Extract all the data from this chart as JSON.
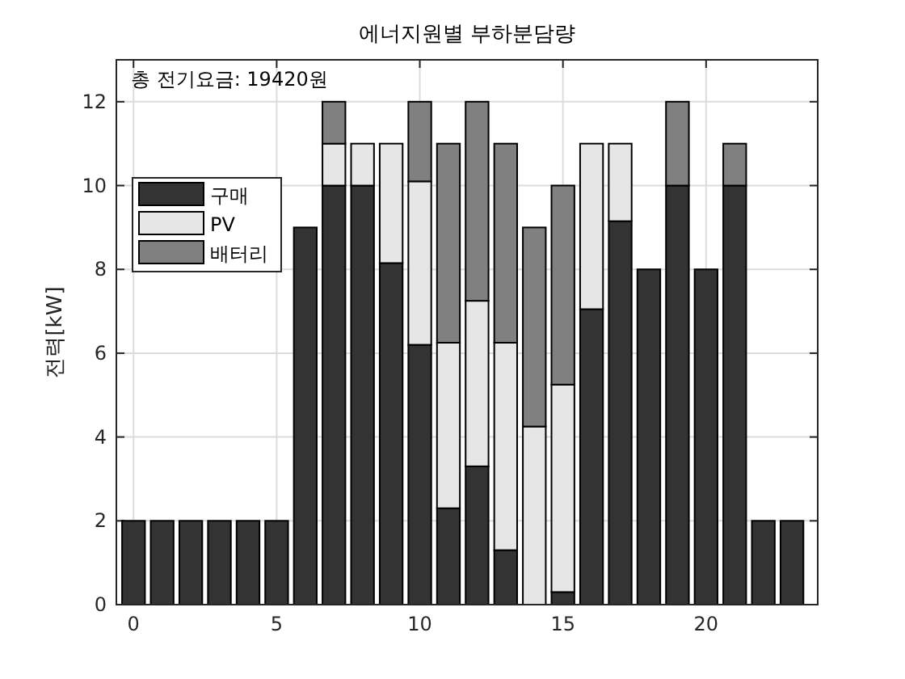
{
  "chart_data": {
    "type": "bar",
    "stacked": true,
    "title": "에너지원별 부하분담량",
    "ylabel": "전력[kW]",
    "annotations": [
      "총 전기요금: 19420원"
    ],
    "x": [
      0,
      1,
      2,
      3,
      4,
      5,
      6,
      7,
      8,
      9,
      10,
      11,
      12,
      13,
      14,
      15,
      16,
      17,
      18,
      19,
      20,
      21,
      22,
      23
    ],
    "series": [
      {
        "name": "구매",
        "color": "#333333",
        "values": [
          2,
          2,
          2,
          2,
          2,
          2,
          9,
          10,
          10,
          8.15,
          6.2,
          2.3,
          3.3,
          1.3,
          0,
          0.3,
          7.05,
          9.15,
          8,
          10,
          8,
          10,
          2,
          2
        ]
      },
      {
        "name": "PV",
        "color": "#e6e6e6",
        "values": [
          0,
          0,
          0,
          0,
          0,
          0,
          0,
          1,
          1,
          2.85,
          3.9,
          3.95,
          3.95,
          4.95,
          4.25,
          4.95,
          3.95,
          1.85,
          0,
          0,
          0,
          0,
          0,
          0
        ]
      },
      {
        "name": "배터리",
        "color": "#808080",
        "values": [
          0,
          0,
          0,
          0,
          0,
          0,
          0,
          1,
          0,
          0,
          1.9,
          4.75,
          4.75,
          4.75,
          4.75,
          4.75,
          0,
          0,
          0,
          2,
          0,
          1,
          0,
          0
        ]
      }
    ],
    "xlim": [
      -0.6,
      23.9
    ],
    "xticks": [
      0,
      5,
      10,
      15,
      20
    ],
    "ylim": [
      0,
      13
    ],
    "yticks": [
      0,
      2,
      4,
      6,
      8,
      10,
      12
    ],
    "grid": true,
    "legend": "top left"
  }
}
